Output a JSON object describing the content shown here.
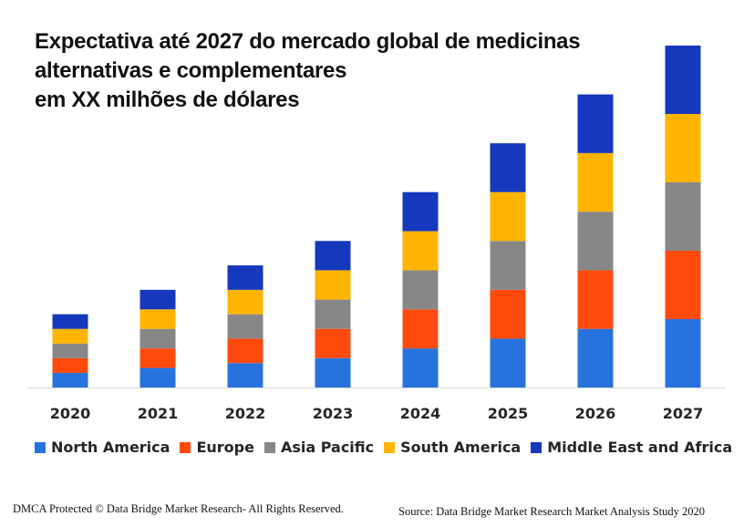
{
  "chart_data": {
    "type": "bar",
    "stacked": true,
    "title_lines": [
      "Expectativa até 2027 do mercado global de medicinas",
      "alternativas e complementares",
      "em XX milhões de dólares"
    ],
    "xlabel": "",
    "ylabel": "",
    "y_axis_shown": false,
    "grid": false,
    "ylim": [
      0,
      70
    ],
    "categories": [
      "2020",
      "2021",
      "2022",
      "2023",
      "2024",
      "2025",
      "2026",
      "2027"
    ],
    "series": [
      {
        "name": "North America",
        "color": "#2673DD",
        "values": [
          3,
          4,
          5,
          6,
          8,
          10,
          12,
          14
        ]
      },
      {
        "name": "Europe",
        "color": "#FF4A0E",
        "values": [
          3,
          4,
          5,
          6,
          8,
          10,
          12,
          14
        ]
      },
      {
        "name": "Asia Pacific",
        "color": "#878787",
        "values": [
          3,
          4,
          5,
          6,
          8,
          10,
          12,
          14
        ]
      },
      {
        "name": "South America",
        "color": "#FFB400",
        "values": [
          3,
          4,
          5,
          6,
          8,
          10,
          12,
          14
        ]
      },
      {
        "name": "Middle East and Africa",
        "color": "#1638BD",
        "values": [
          3,
          4,
          5,
          6,
          8,
          10,
          12,
          14
        ]
      }
    ],
    "values_note": "Relative estimates (arbitrary units); no value axis or data labels shown",
    "legend_position": "bottom"
  },
  "footer": {
    "copyright": "DMCA Protected © Data Bridge Market Research- All Rights Reserved.",
    "source": "Source: Data Bridge Market Research Market Analysis Study 2020"
  }
}
